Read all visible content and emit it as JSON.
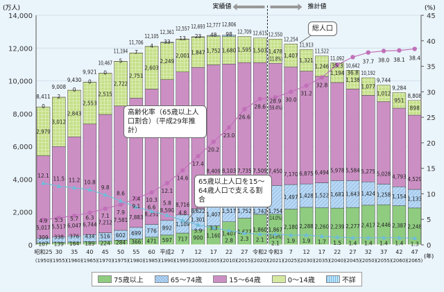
{
  "chart_data": {
    "type": "bar",
    "stacked": true,
    "left_unit": "(万人)",
    "right_unit": "(%)",
    "x_unit": "(年)",
    "ylim": [
      0,
      14000
    ],
    "y_ticks": [
      "0",
      "2,000",
      "4,000",
      "6,000",
      "8,000",
      "10,000",
      "12,000",
      "14,000"
    ],
    "y2lim": [
      0,
      45
    ],
    "y2_ticks": [
      "0",
      "5",
      "10",
      "15",
      "20",
      "25",
      "30",
      "35",
      "40",
      "45"
    ],
    "actual_label": "実績値",
    "projected_label": "推計値",
    "categories": [
      "昭和25",
      "30",
      "35",
      "40",
      "45",
      "50",
      "55",
      "60",
      "平成2",
      "7",
      "12",
      "17",
      "22",
      "27",
      "令和2",
      "令和3",
      "7",
      "12",
      "17",
      "22",
      "27",
      "32",
      "37",
      "42",
      "47"
    ],
    "categories_year": [
      "(1950)",
      "(1955)",
      "(1960)",
      "(1965)",
      "(1970)",
      "(1975)",
      "(1980)",
      "(1985)",
      "(1990)",
      "(1995)",
      "(2000)",
      "(2005)",
      "(2010)",
      "(2015)",
      "(2020)",
      "(2021)",
      "(2025)",
      "(2030)",
      "(2035)",
      "(2040)",
      "(2045)",
      "(2050)",
      "(2055)",
      "(2060)",
      "(2065)"
    ],
    "totals": [
      8411,
      9008,
      9430,
      9921,
      10467,
      11194,
      11706,
      12105,
      12361,
      12557,
      12693,
      12777,
      12806,
      12709,
      12615,
      12550,
      12254,
      11913,
      11522,
      11092,
      10642,
      10192,
      9744,
      9284,
      8808
    ],
    "series": [
      {
        "name": "75歳以上",
        "color": "#8fcc80",
        "values": [
          107,
          139,
          164,
          189,
          224,
          284,
          366,
          471,
          597,
          717,
          900,
          1160,
          1407,
          1627,
          1860,
          1867,
          2180,
          2288,
          2260,
          2239,
          2277,
          2417,
          2446,
          2387,
          2248
        ]
      },
      {
        "name": "65～74歳",
        "color": "#a9cdef",
        "values": [
          309,
          338,
          376,
          434,
          516,
          602,
          699,
          776,
          892,
          1109,
          1301,
          1407,
          1517,
          1752,
          1742,
          1754,
          1497,
          1428,
          1522,
          1681,
          1643,
          1424,
          1258,
          1154,
          1133
        ]
      },
      {
        "name": "15～64歳",
        "color": "#cc8fc4",
        "values": [
          5017,
          5517,
          6047,
          6744,
          7212,
          7581,
          7883,
          8251,
          8590,
          8716,
          8622,
          8409,
          8103,
          7735,
          7509,
          7450,
          7170,
          6875,
          6494,
          5978,
          5584,
          5275,
          5028,
          4793,
          4529
        ]
      },
      {
        "name": "0～14歳",
        "color": "#d4e8a0",
        "values": [
          2979,
          3012,
          2843,
          2553,
          2515,
          2722,
          2751,
          2603,
          2249,
          2001,
          1847,
          1752,
          1680,
          1595,
          1503,
          1478,
          1407,
          1321,
          1246,
          1194,
          1138,
          1077,
          1012,
          951,
          898
        ]
      },
      {
        "name": "不詳",
        "color": "#9fd3f0",
        "values": [
          0,
          2,
          0,
          0,
          0,
          5,
          7,
          4,
          33,
          13,
          23,
          48,
          98,
          null,
          null,
          null,
          null,
          null,
          null,
          null,
          null,
          null,
          null,
          null,
          null
        ]
      }
    ],
    "share_2021": {
      "0-14": "(11.8%)",
      "15-64": "(59.4%)",
      "65-74": "(14.0%)",
      "75+": "(14.9%)"
    },
    "lines": [
      {
        "name": "高齢化率（65歳以上人口割合）（平成29年推計）",
        "axis": "right",
        "color": "#c070b8",
        "values": [
          4.9,
          5.3,
          5.7,
          6.3,
          7.1,
          7.9,
          9.1,
          10.3,
          12.1,
          14.6,
          17.4,
          20.2,
          23.0,
          26.6,
          28.6,
          28.9,
          30.0,
          31.2,
          32.8,
          35.3,
          36.8,
          37.7,
          38.0,
          38.1,
          38.4
        ]
      },
      {
        "name": "65歳以上人口を15～64歳人口で支える割合",
        "axis": "right",
        "color": "#70bcd8",
        "values": [
          12.1,
          11.5,
          11.2,
          10.8,
          9.8,
          8.6,
          7.4,
          6.6,
          5.8,
          4.8,
          3.9,
          3.3,
          2.8,
          2.3,
          2.1,
          2.1,
          1.9,
          1.9,
          1.7,
          1.5,
          1.4,
          1.4,
          1.4,
          1.4,
          1.3
        ]
      }
    ],
    "callouts": {
      "aging": "高齢化率（65歳以上人口割合）（平成29年推計）",
      "total": "総人口",
      "support": "65歳以上人口を15～64歳人口で支える割合"
    }
  }
}
